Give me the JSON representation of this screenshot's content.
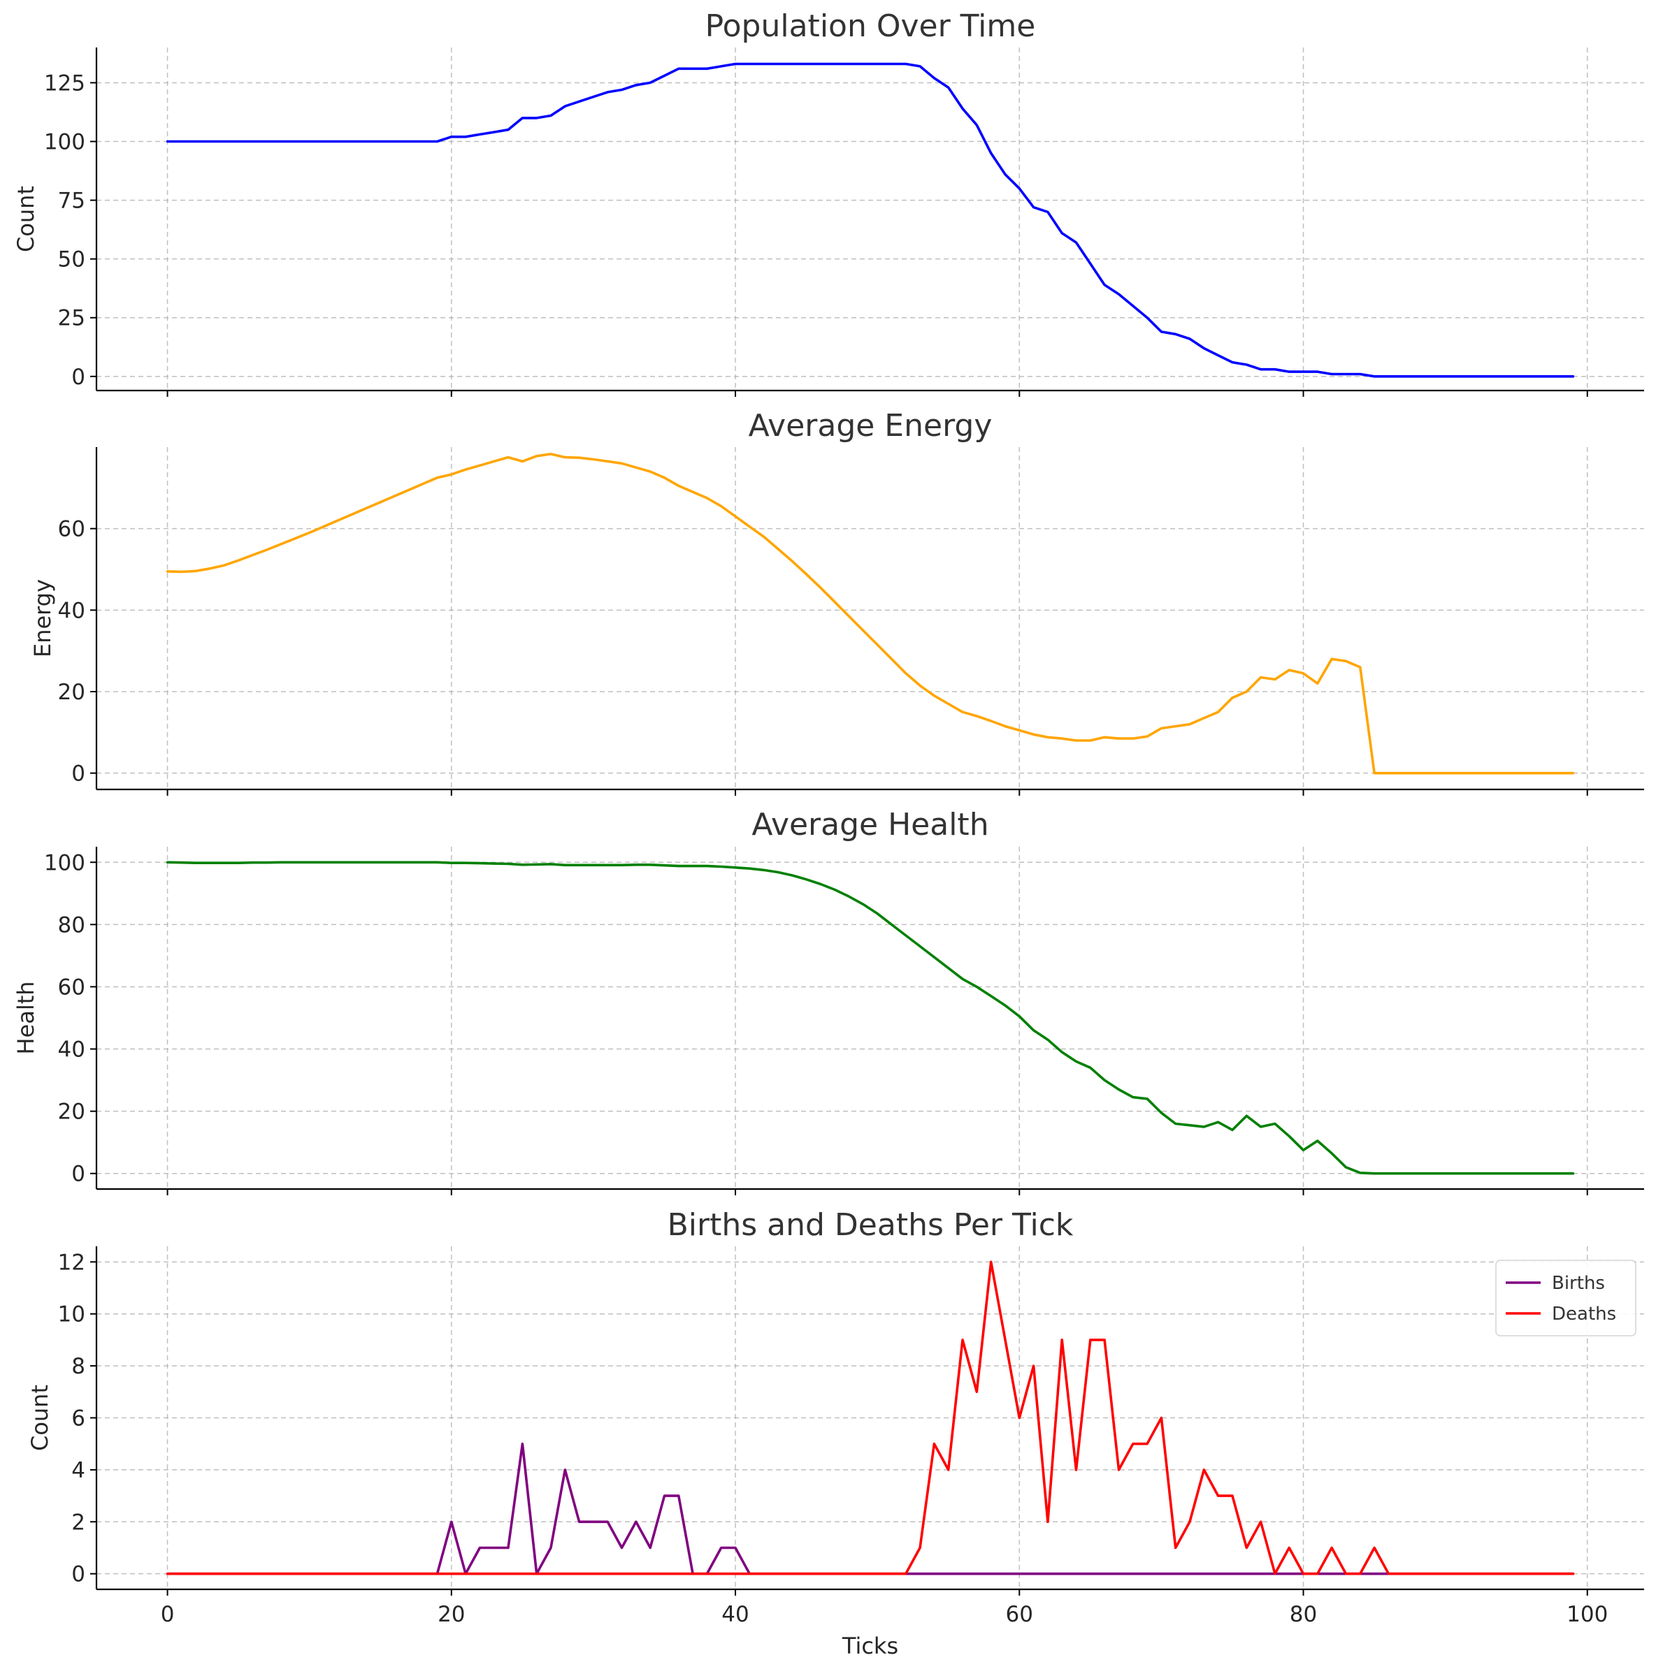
{
  "chart_data": [
    {
      "type": "line",
      "title": "Population Over Time",
      "xlabel": "",
      "ylabel": "Count",
      "xlim": [
        -5,
        104
      ],
      "ylim": [
        -6,
        140
      ],
      "xticks": [
        0,
        20,
        40,
        60,
        80,
        100
      ],
      "yticks": [
        0,
        25,
        50,
        75,
        100,
        125
      ],
      "grid": true,
      "series": [
        {
          "color": "#0000ff",
          "x": [
            0,
            1,
            2,
            3,
            4,
            5,
            6,
            7,
            8,
            9,
            10,
            11,
            12,
            13,
            14,
            15,
            16,
            17,
            18,
            19,
            20,
            21,
            22,
            23,
            24,
            25,
            26,
            27,
            28,
            29,
            30,
            31,
            32,
            33,
            34,
            35,
            36,
            37,
            38,
            39,
            40,
            41,
            42,
            43,
            44,
            45,
            46,
            47,
            48,
            49,
            50,
            51,
            52,
            53,
            54,
            55,
            56,
            57,
            58,
            59,
            60,
            61,
            62,
            63,
            64,
            65,
            66,
            67,
            68,
            69,
            70,
            71,
            72,
            73,
            74,
            75,
            76,
            77,
            78,
            79,
            80,
            81,
            82,
            83,
            84,
            85,
            86,
            87,
            88,
            89,
            90,
            91,
            92,
            93,
            94,
            95,
            96,
            97,
            98,
            99
          ],
          "values": [
            100,
            100,
            100,
            100,
            100,
            100,
            100,
            100,
            100,
            100,
            100,
            100,
            100,
            100,
            100,
            100,
            100,
            100,
            100,
            100,
            102,
            102,
            103,
            104,
            105,
            110,
            110,
            111,
            115,
            117,
            119,
            121,
            122,
            124,
            125,
            128,
            131,
            131,
            131,
            132,
            133,
            133,
            133,
            133,
            133,
            133,
            133,
            133,
            133,
            133,
            133,
            133,
            133,
            132,
            127,
            123,
            114,
            107,
            95,
            86,
            80,
            72,
            70,
            61,
            57,
            48,
            39,
            35,
            30,
            25,
            19,
            18,
            16,
            12,
            9,
            6,
            5,
            3,
            3,
            2,
            2,
            2,
            1,
            1,
            1,
            0,
            0,
            0,
            0,
            0,
            0,
            0,
            0,
            0,
            0,
            0,
            0,
            0,
            0,
            0
          ]
        }
      ]
    },
    {
      "type": "line",
      "title": "Average Energy",
      "xlabel": "",
      "ylabel": "Energy",
      "xlim": [
        -5,
        104
      ],
      "ylim": [
        -4,
        80
      ],
      "xticks": [
        0,
        20,
        40,
        60,
        80,
        100
      ],
      "yticks": [
        0,
        20,
        40,
        60
      ],
      "grid": true,
      "series": [
        {
          "color": "#ffa500",
          "x": [
            0,
            1,
            2,
            3,
            4,
            5,
            6,
            7,
            8,
            9,
            10,
            11,
            12,
            13,
            14,
            15,
            16,
            17,
            18,
            19,
            20,
            21,
            22,
            23,
            24,
            25,
            26,
            27,
            28,
            29,
            30,
            31,
            32,
            33,
            34,
            35,
            36,
            37,
            38,
            39,
            40,
            41,
            42,
            43,
            44,
            45,
            46,
            47,
            48,
            49,
            50,
            51,
            52,
            53,
            54,
            55,
            56,
            57,
            58,
            59,
            60,
            61,
            62,
            63,
            64,
            65,
            66,
            67,
            68,
            69,
            70,
            71,
            72,
            73,
            74,
            75,
            76,
            77,
            78,
            79,
            80,
            81,
            82,
            83,
            84,
            85,
            86,
            87,
            88,
            89,
            90,
            91,
            92,
            93,
            94,
            95,
            96,
            97,
            98,
            99
          ],
          "values": [
            49.5,
            49.4,
            49.6,
            50.2,
            51.0,
            52.2,
            53.5,
            54.8,
            56.2,
            57.6,
            59.0,
            60.5,
            62.0,
            63.5,
            65.0,
            66.5,
            68.0,
            69.5,
            71.0,
            72.5,
            73.3,
            74.5,
            75.5,
            76.5,
            77.5,
            76.5,
            77.8,
            78.3,
            77.5,
            77.4,
            77.0,
            76.5,
            76.0,
            75.0,
            74.0,
            72.5,
            70.5,
            69.0,
            67.5,
            65.5,
            63.0,
            60.5,
            58.0,
            55.0,
            52.0,
            48.8,
            45.5,
            42.0,
            38.5,
            35.0,
            31.5,
            28.0,
            24.5,
            21.5,
            19.0,
            17.0,
            15.0,
            14.0,
            12.8,
            11.5,
            10.5,
            9.5,
            8.8,
            8.5,
            8.0,
            8.0,
            8.8,
            8.5,
            8.5,
            9.0,
            11.0,
            11.5,
            12.0,
            13.5,
            15.0,
            18.5,
            20.0,
            23.5,
            23.0,
            25.3,
            24.5,
            22.0,
            28.0,
            27.5,
            26.0,
            0,
            0,
            0,
            0,
            0,
            0,
            0,
            0,
            0,
            0,
            0,
            0,
            0,
            0,
            0
          ]
        }
      ]
    },
    {
      "type": "line",
      "title": "Average Health",
      "xlabel": "",
      "ylabel": "Health",
      "xlim": [
        -5,
        104
      ],
      "ylim": [
        -5,
        105
      ],
      "xticks": [
        0,
        20,
        40,
        60,
        80,
        100
      ],
      "yticks": [
        0,
        20,
        40,
        60,
        80,
        100
      ],
      "grid": true,
      "series": [
        {
          "color": "#008000",
          "x": [
            0,
            1,
            2,
            3,
            4,
            5,
            6,
            7,
            8,
            9,
            10,
            11,
            12,
            13,
            14,
            15,
            16,
            17,
            18,
            19,
            20,
            21,
            22,
            23,
            24,
            25,
            26,
            27,
            28,
            29,
            30,
            31,
            32,
            33,
            34,
            35,
            36,
            37,
            38,
            39,
            40,
            41,
            42,
            43,
            44,
            45,
            46,
            47,
            48,
            49,
            50,
            51,
            52,
            53,
            54,
            55,
            56,
            57,
            58,
            59,
            60,
            61,
            62,
            63,
            64,
            65,
            66,
            67,
            68,
            69,
            70,
            71,
            72,
            73,
            74,
            75,
            76,
            77,
            78,
            79,
            80,
            81,
            82,
            83,
            84,
            85,
            86,
            87,
            88,
            89,
            90,
            91,
            92,
            93,
            94,
            95,
            96,
            97,
            98,
            99
          ],
          "values": [
            100,
            99.9,
            99.8,
            99.8,
            99.8,
            99.8,
            99.9,
            99.9,
            100,
            100,
            100,
            100,
            100,
            100,
            100,
            100,
            100,
            100,
            100,
            100,
            99.8,
            99.8,
            99.7,
            99.6,
            99.5,
            99.2,
            99.3,
            99.4,
            99.1,
            99.1,
            99.1,
            99.1,
            99.1,
            99.2,
            99.2,
            99.0,
            98.8,
            98.8,
            98.8,
            98.6,
            98.3,
            98.0,
            97.5,
            96.8,
            95.8,
            94.5,
            93.0,
            91.2,
            89.0,
            86.5,
            83.5,
            80.0,
            76.5,
            73.0,
            69.5,
            66.0,
            62.5,
            60.0,
            57.0,
            54.0,
            50.5,
            46.0,
            43.0,
            39.0,
            36.0,
            34.0,
            30.0,
            27.0,
            24.5,
            24.0,
            19.5,
            16.0,
            15.5,
            15.0,
            16.5,
            14.0,
            18.5,
            15.0,
            16.0,
            12.0,
            7.5,
            10.5,
            6.5,
            2.0,
            0.2,
            0,
            0,
            0,
            0,
            0,
            0,
            0,
            0,
            0,
            0,
            0,
            0,
            0,
            0,
            0
          ]
        }
      ]
    },
    {
      "type": "line",
      "title": "Births and Deaths Per Tick",
      "xlabel": "Ticks",
      "ylabel": "Count",
      "xlim": [
        -5,
        104
      ],
      "ylim": [
        -0.6,
        12.6
      ],
      "xticks": [
        0,
        20,
        40,
        60,
        80,
        100
      ],
      "yticks": [
        0,
        2,
        4,
        6,
        8,
        10,
        12
      ],
      "grid": true,
      "legend": "top-right",
      "x": [
        0,
        1,
        2,
        3,
        4,
        5,
        6,
        7,
        8,
        9,
        10,
        11,
        12,
        13,
        14,
        15,
        16,
        17,
        18,
        19,
        20,
        21,
        22,
        23,
        24,
        25,
        26,
        27,
        28,
        29,
        30,
        31,
        32,
        33,
        34,
        35,
        36,
        37,
        38,
        39,
        40,
        41,
        42,
        43,
        44,
        45,
        46,
        47,
        48,
        49,
        50,
        51,
        52,
        53,
        54,
        55,
        56,
        57,
        58,
        59,
        60,
        61,
        62,
        63,
        64,
        65,
        66,
        67,
        68,
        69,
        70,
        71,
        72,
        73,
        74,
        75,
        76,
        77,
        78,
        79,
        80,
        81,
        82,
        83,
        84,
        85,
        86,
        87,
        88,
        89,
        90,
        91,
        92,
        93,
        94,
        95,
        96,
        97,
        98,
        99
      ],
      "series": [
        {
          "name": "Births",
          "color": "#800080",
          "values": [
            0,
            0,
            0,
            0,
            0,
            0,
            0,
            0,
            0,
            0,
            0,
            0,
            0,
            0,
            0,
            0,
            0,
            0,
            0,
            0,
            2,
            0,
            1,
            1,
            1,
            5,
            0,
            1,
            4,
            2,
            2,
            2,
            1,
            2,
            1,
            3,
            3,
            0,
            0,
            1,
            1,
            0,
            0,
            0,
            0,
            0,
            0,
            0,
            0,
            0,
            0,
            0,
            0,
            0,
            0,
            0,
            0,
            0,
            0,
            0,
            0,
            0,
            0,
            0,
            0,
            0,
            0,
            0,
            0,
            0,
            0,
            0,
            0,
            0,
            0,
            0,
            0,
            0,
            0,
            0,
            0,
            0,
            0,
            0,
            0,
            0,
            0,
            0,
            0,
            0,
            0,
            0,
            0,
            0,
            0,
            0,
            0,
            0,
            0,
            0
          ]
        },
        {
          "name": "Deaths",
          "color": "#ff0000",
          "values": [
            0,
            0,
            0,
            0,
            0,
            0,
            0,
            0,
            0,
            0,
            0,
            0,
            0,
            0,
            0,
            0,
            0,
            0,
            0,
            0,
            0,
            0,
            0,
            0,
            0,
            0,
            0,
            0,
            0,
            0,
            0,
            0,
            0,
            0,
            0,
            0,
            0,
            0,
            0,
            0,
            0,
            0,
            0,
            0,
            0,
            0,
            0,
            0,
            0,
            0,
            0,
            0,
            0,
            1,
            5,
            4,
            9,
            7,
            12,
            9,
            6,
            8,
            2,
            9,
            4,
            9,
            9,
            4,
            5,
            5,
            6,
            1,
            2,
            4,
            3,
            3,
            1,
            2,
            0,
            1,
            0,
            0,
            1,
            0,
            0,
            1,
            0,
            0,
            0,
            0,
            0,
            0,
            0,
            0,
            0,
            0,
            0,
            0,
            0,
            0
          ]
        }
      ]
    }
  ]
}
